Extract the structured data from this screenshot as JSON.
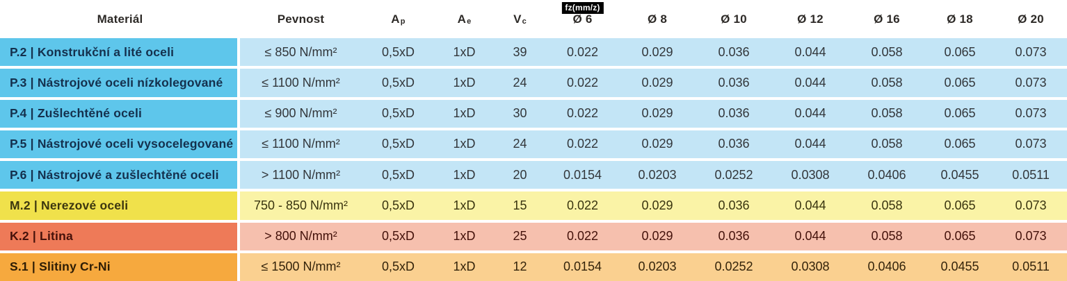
{
  "header": {
    "material": "Materiál",
    "pevnost": "Pevnost",
    "ap": {
      "base": "A",
      "sub": "p"
    },
    "ae": {
      "base": "A",
      "sub": "e"
    },
    "vc": {
      "base": "V",
      "sub": "c"
    },
    "fz_badge": "fz(mm/z)",
    "diameters": [
      "Ø 6",
      "Ø 8",
      "Ø 10",
      "Ø 12",
      "Ø 16",
      "Ø 18",
      "Ø 20"
    ]
  },
  "rows": [
    {
      "material": "P.2 | Konstrukční a lité oceli",
      "pevnost": "≤ 850 N/mm²",
      "ap": "0,5xD",
      "ae": "1xD",
      "vc": "39",
      "fz": [
        "0.022",
        "0.029",
        "0.036",
        "0.044",
        "0.058",
        "0.065",
        "0.073"
      ],
      "theme": "blue"
    },
    {
      "material": "P.3 | Nástrojové oceli nízkolegované",
      "pevnost": "≤ 1100 N/mm²",
      "ap": "0,5xD",
      "ae": "1xD",
      "vc": "24",
      "fz": [
        "0.022",
        "0.029",
        "0.036",
        "0.044",
        "0.058",
        "0.065",
        "0.073"
      ],
      "theme": "blue"
    },
    {
      "material": "P.4 | Zušlechtěné oceli",
      "pevnost": "≤ 900 N/mm²",
      "ap": "0,5xD",
      "ae": "1xD",
      "vc": "30",
      "fz": [
        "0.022",
        "0.029",
        "0.036",
        "0.044",
        "0.058",
        "0.065",
        "0.073"
      ],
      "theme": "blue"
    },
    {
      "material": "P.5 | Nástrojové oceli vysocelegované",
      "pevnost": "≤ 1100 N/mm²",
      "ap": "0,5xD",
      "ae": "1xD",
      "vc": "24",
      "fz": [
        "0.022",
        "0.029",
        "0.036",
        "0.044",
        "0.058",
        "0.065",
        "0.073"
      ],
      "theme": "blue"
    },
    {
      "material": "P.6 | Nástrojové a zušlechtěné oceli",
      "pevnost": "> 1100 N/mm²",
      "ap": "0,5xD",
      "ae": "1xD",
      "vc": "20",
      "fz": [
        "0.0154",
        "0.0203",
        "0.0252",
        "0.0308",
        "0.0406",
        "0.0455",
        "0.0511"
      ],
      "theme": "blue"
    },
    {
      "material": "M.2 | Nerezové oceli",
      "pevnost": "750 - 850 N/mm²",
      "ap": "0,5xD",
      "ae": "1xD",
      "vc": "15",
      "fz": [
        "0.022",
        "0.029",
        "0.036",
        "0.044",
        "0.058",
        "0.065",
        "0.073"
      ],
      "theme": "yellow"
    },
    {
      "material": "K.2 | Litina",
      "pevnost": "> 800 N/mm²",
      "ap": "0,5xD",
      "ae": "1xD",
      "vc": "25",
      "fz": [
        "0.022",
        "0.029",
        "0.036",
        "0.044",
        "0.058",
        "0.065",
        "0.073"
      ],
      "theme": "red"
    },
    {
      "material": "S.1 | Slitiny Cr-Ni",
      "pevnost": "≤ 1500 N/mm²",
      "ap": "0,5xD",
      "ae": "1xD",
      "vc": "12",
      "fz": [
        "0.0154",
        "0.0203",
        "0.0252",
        "0.0308",
        "0.0406",
        "0.0455",
        "0.0511"
      ],
      "theme": "orange"
    }
  ],
  "themes": {
    "blue": {
      "dark": "#5ec6eb",
      "light": "#c3e5f6",
      "label": "#14304d",
      "value": "#32363a"
    },
    "yellow": {
      "dark": "#f0e14b",
      "light": "#faf3a6",
      "label": "#3c370f",
      "value": "#39340f"
    },
    "red": {
      "dark": "#ee7a58",
      "light": "#f6c0ae",
      "label": "#45110a",
      "value": "#43110a"
    },
    "orange": {
      "dark": "#f6a93e",
      "light": "#fad090",
      "label": "#2e1d05",
      "value": "#33230a"
    }
  }
}
